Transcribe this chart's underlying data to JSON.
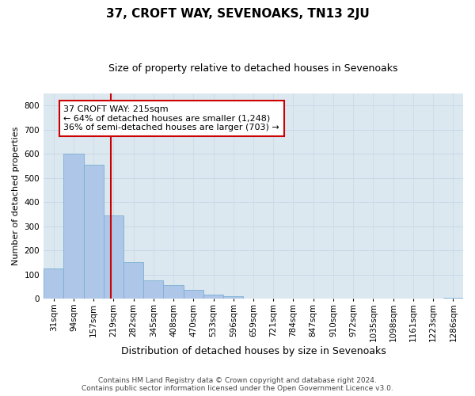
{
  "title": "37, CROFT WAY, SEVENOAKS, TN13 2JU",
  "subtitle": "Size of property relative to detached houses in Sevenoaks",
  "xlabel": "Distribution of detached houses by size in Sevenoaks",
  "ylabel": "Number of detached properties",
  "categories": [
    "31sqm",
    "94sqm",
    "157sqm",
    "219sqm",
    "282sqm",
    "345sqm",
    "408sqm",
    "470sqm",
    "533sqm",
    "596sqm",
    "659sqm",
    "721sqm",
    "784sqm",
    "847sqm",
    "910sqm",
    "972sqm",
    "1035sqm",
    "1098sqm",
    "1161sqm",
    "1223sqm",
    "1286sqm"
  ],
  "values": [
    125,
    600,
    555,
    345,
    150,
    75,
    55,
    35,
    18,
    10,
    0,
    0,
    0,
    0,
    0,
    0,
    0,
    0,
    0,
    0,
    5
  ],
  "bar_color": "#aec6e8",
  "bar_edgecolor": "#7aafd4",
  "property_line_x": 2.87,
  "property_line_color": "#cc0000",
  "annotation_text": "37 CROFT WAY: 215sqm\n← 64% of detached houses are smaller (1,248)\n36% of semi-detached houses are larger (703) →",
  "annotation_box_edgecolor": "#cc0000",
  "ylim": [
    0,
    850
  ],
  "yticks": [
    0,
    100,
    200,
    300,
    400,
    500,
    600,
    700,
    800
  ],
  "grid_color": "#c8d8e8",
  "background_color": "#dce8f0",
  "footer_line1": "Contains HM Land Registry data © Crown copyright and database right 2024.",
  "footer_line2": "Contains public sector information licensed under the Open Government Licence v3.0.",
  "title_fontsize": 11,
  "subtitle_fontsize": 9,
  "ylabel_fontsize": 8,
  "xlabel_fontsize": 9,
  "annotation_fontsize": 8,
  "tick_fontsize": 7.5,
  "footer_fontsize": 6.5
}
